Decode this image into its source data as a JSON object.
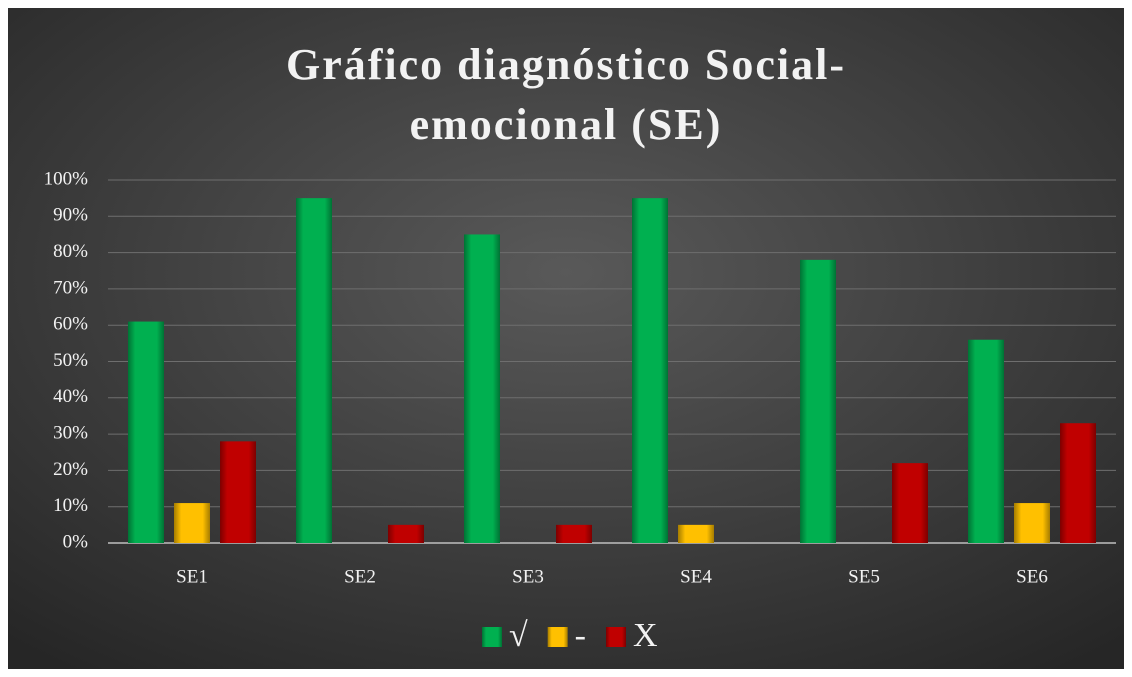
{
  "chart_data": {
    "type": "bar",
    "title": [
      "Gráfico diagnóstico Social-",
      "emocional (SE)"
    ],
    "categories": [
      "SE1",
      "SE2",
      "SE3",
      "SE4",
      "SE5",
      "SE6"
    ],
    "series": [
      {
        "name": "√",
        "color": "#00b050",
        "values": [
          61,
          95,
          85,
          95,
          78,
          56
        ]
      },
      {
        "name": "-",
        "color": "#ffc000",
        "values": [
          11,
          0,
          0,
          5,
          0,
          11
        ]
      },
      {
        "name": "X",
        "color": "#c00000",
        "values": [
          28,
          5,
          5,
          0,
          22,
          33
        ]
      }
    ],
    "ylim": [
      0,
      100
    ],
    "yticks": [
      {
        "value": 0,
        "label": "0%"
      },
      {
        "value": 10,
        "label": "10%"
      },
      {
        "value": 20,
        "label": "20%"
      },
      {
        "value": 30,
        "label": "30%"
      },
      {
        "value": 40,
        "label": "40%"
      },
      {
        "value": 50,
        "label": "50%"
      },
      {
        "value": 60,
        "label": "60%"
      },
      {
        "value": 70,
        "label": "70%"
      },
      {
        "value": 80,
        "label": "80%"
      },
      {
        "value": 90,
        "label": "90%"
      },
      {
        "value": 100,
        "label": "100%"
      }
    ],
    "grid": true,
    "legend": "bottom"
  }
}
